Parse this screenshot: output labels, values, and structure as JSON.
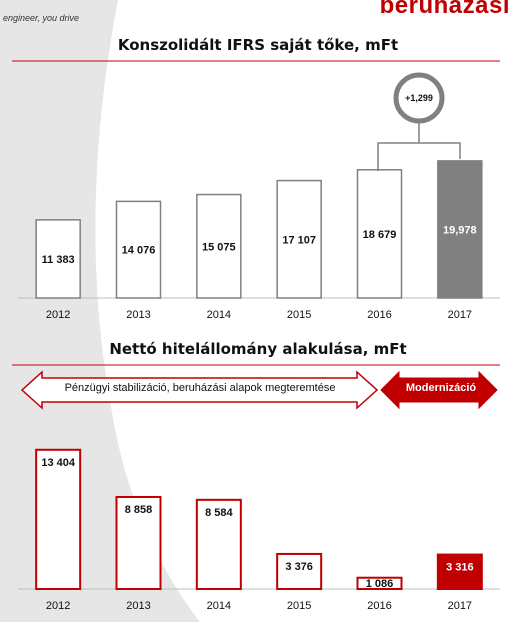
{
  "header": {
    "tagline": "engineer, you drive",
    "corner_heading": "beruházási"
  },
  "arrows": {
    "left_label": "Pénzügyi stabilizáció, beruházási alapok megteremtése",
    "right_label": "Modernizáció"
  },
  "colors": {
    "accent_red": "#c00000",
    "gray_bar": "#808080",
    "outline_gray": "#808080"
  },
  "chart_data": [
    {
      "type": "bar",
      "title": "Konszolidált IFRS saját tőke, mFt",
      "categories": [
        "2012",
        "2013",
        "2014",
        "2015",
        "2016",
        "2017"
      ],
      "values": [
        11383,
        14076,
        15075,
        17107,
        18679,
        19978
      ],
      "value_labels": [
        "11 383",
        "14 076",
        "15 075",
        "17 107",
        "18 679",
        "19,978"
      ],
      "highlight_index": 5,
      "annotation": {
        "label": "+1,299",
        "between": [
          4,
          5
        ]
      },
      "ylim": [
        0,
        22000
      ]
    },
    {
      "type": "bar",
      "title": "Nettó hitelállomány alakulása, mFt",
      "categories": [
        "2012",
        "2013",
        "2014",
        "2015",
        "2016",
        "2017"
      ],
      "values": [
        13404,
        8858,
        8584,
        3376,
        1086,
        3316
      ],
      "value_labels": [
        "13 404",
        "8 858",
        "8 584",
        "3 376",
        "1 086",
        "3 316"
      ],
      "highlight_index": 5,
      "ylim": [
        0,
        15500
      ]
    }
  ]
}
